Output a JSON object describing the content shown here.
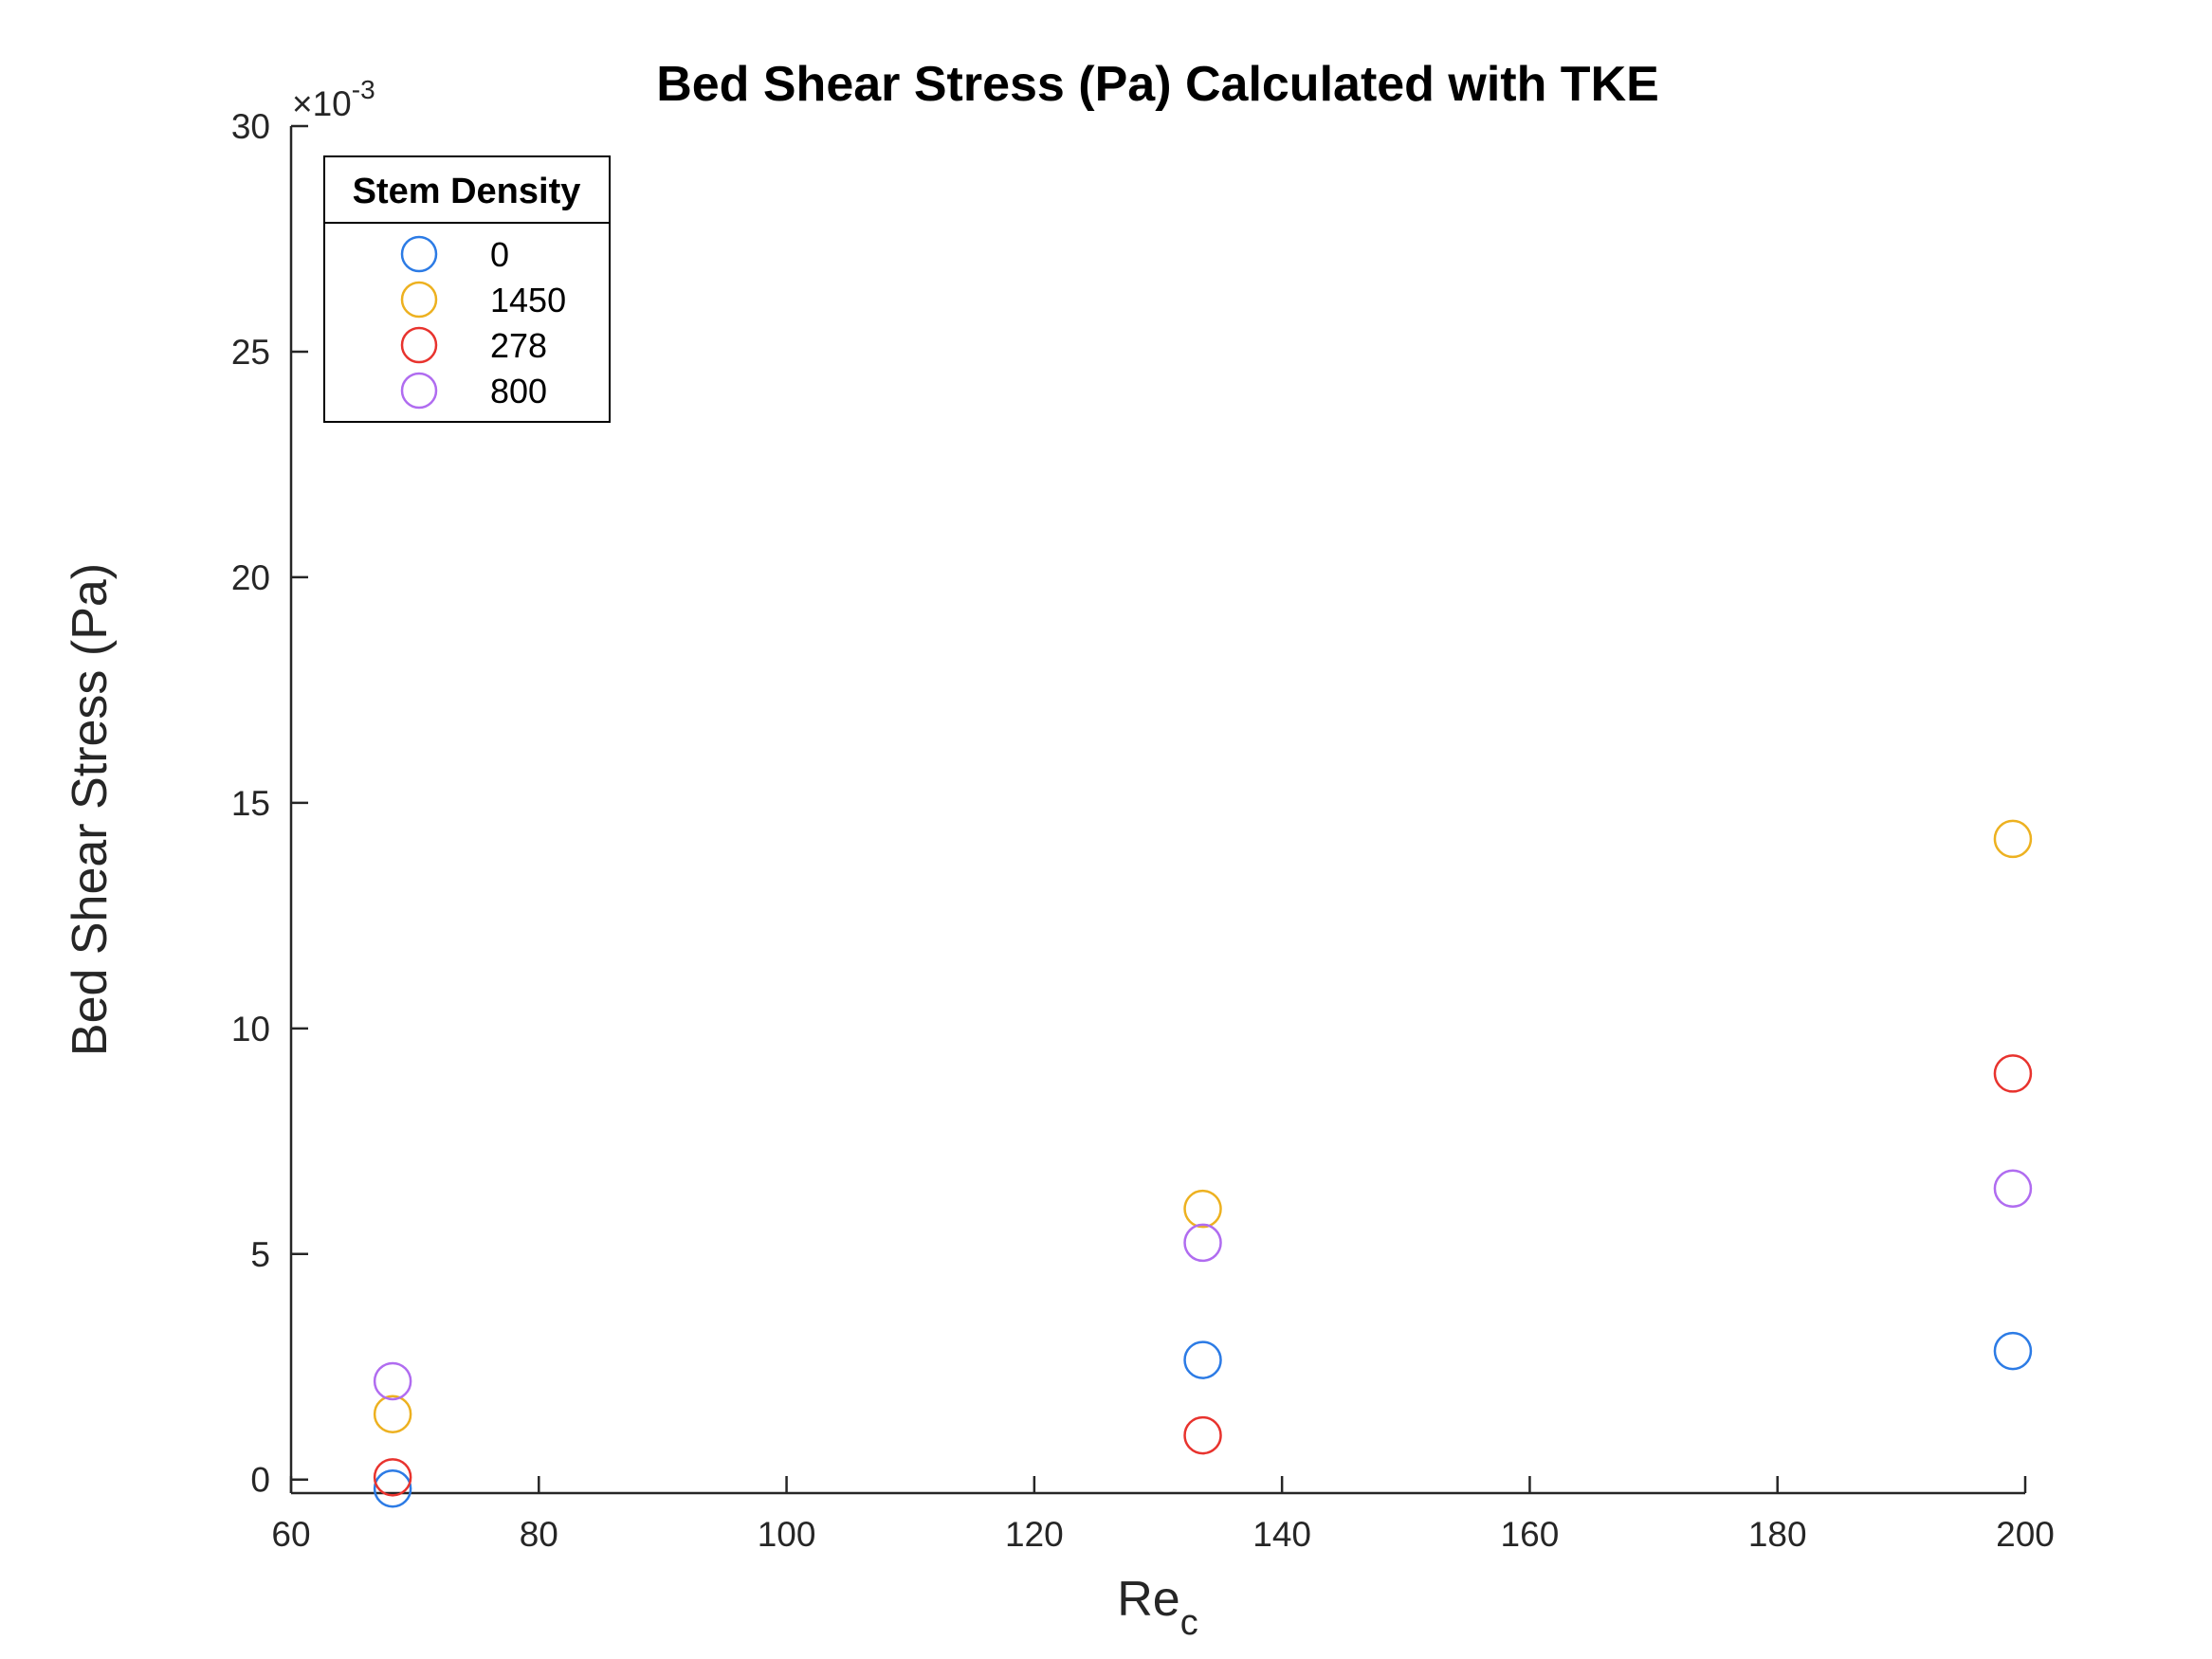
{
  "chart_data": {
    "type": "scatter",
    "title": "Bed Shear Stress (Pa) Calculated with TKE",
    "xlabel": "Re",
    "xlabel_subscript": "c",
    "ylabel": "Bed Shear Stress (Pa)",
    "y_exponent_prefix": "×10",
    "y_exponent_power": "-3",
    "xlim": [
      60,
      200
    ],
    "ylim": [
      -0.3,
      30
    ],
    "x_ticks": [
      60,
      80,
      100,
      120,
      140,
      160,
      180,
      200
    ],
    "y_ticks": [
      0,
      5,
      10,
      15,
      20,
      25,
      30
    ],
    "x_tick_labels": [
      "60",
      "80",
      "100",
      "120",
      "140",
      "160",
      "180",
      "200"
    ],
    "y_tick_labels": [
      "0",
      "5",
      "10",
      "15",
      "20",
      "25",
      "30"
    ],
    "grid": false,
    "legend_placement": "top-left",
    "legend_title": "Stem Density",
    "marker": "open-circle",
    "series": [
      {
        "name": "0",
        "color": "#2c7be5",
        "x": [
          68.2,
          133.6,
          199.0
        ],
        "y": [
          -0.2,
          2.65,
          2.85
        ]
      },
      {
        "name": "1450",
        "color": "#edb120",
        "x": [
          68.2,
          133.6,
          199.0
        ],
        "y": [
          1.45,
          6.0,
          14.2
        ]
      },
      {
        "name": "278",
        "color": "#e8332e",
        "x": [
          68.2,
          133.6,
          199.0
        ],
        "y": [
          0.05,
          0.98,
          9.0
        ]
      },
      {
        "name": "800",
        "color": "#b06cf0",
        "x": [
          68.2,
          133.6,
          199.0
        ],
        "y": [
          2.18,
          5.25,
          6.45
        ]
      }
    ]
  }
}
